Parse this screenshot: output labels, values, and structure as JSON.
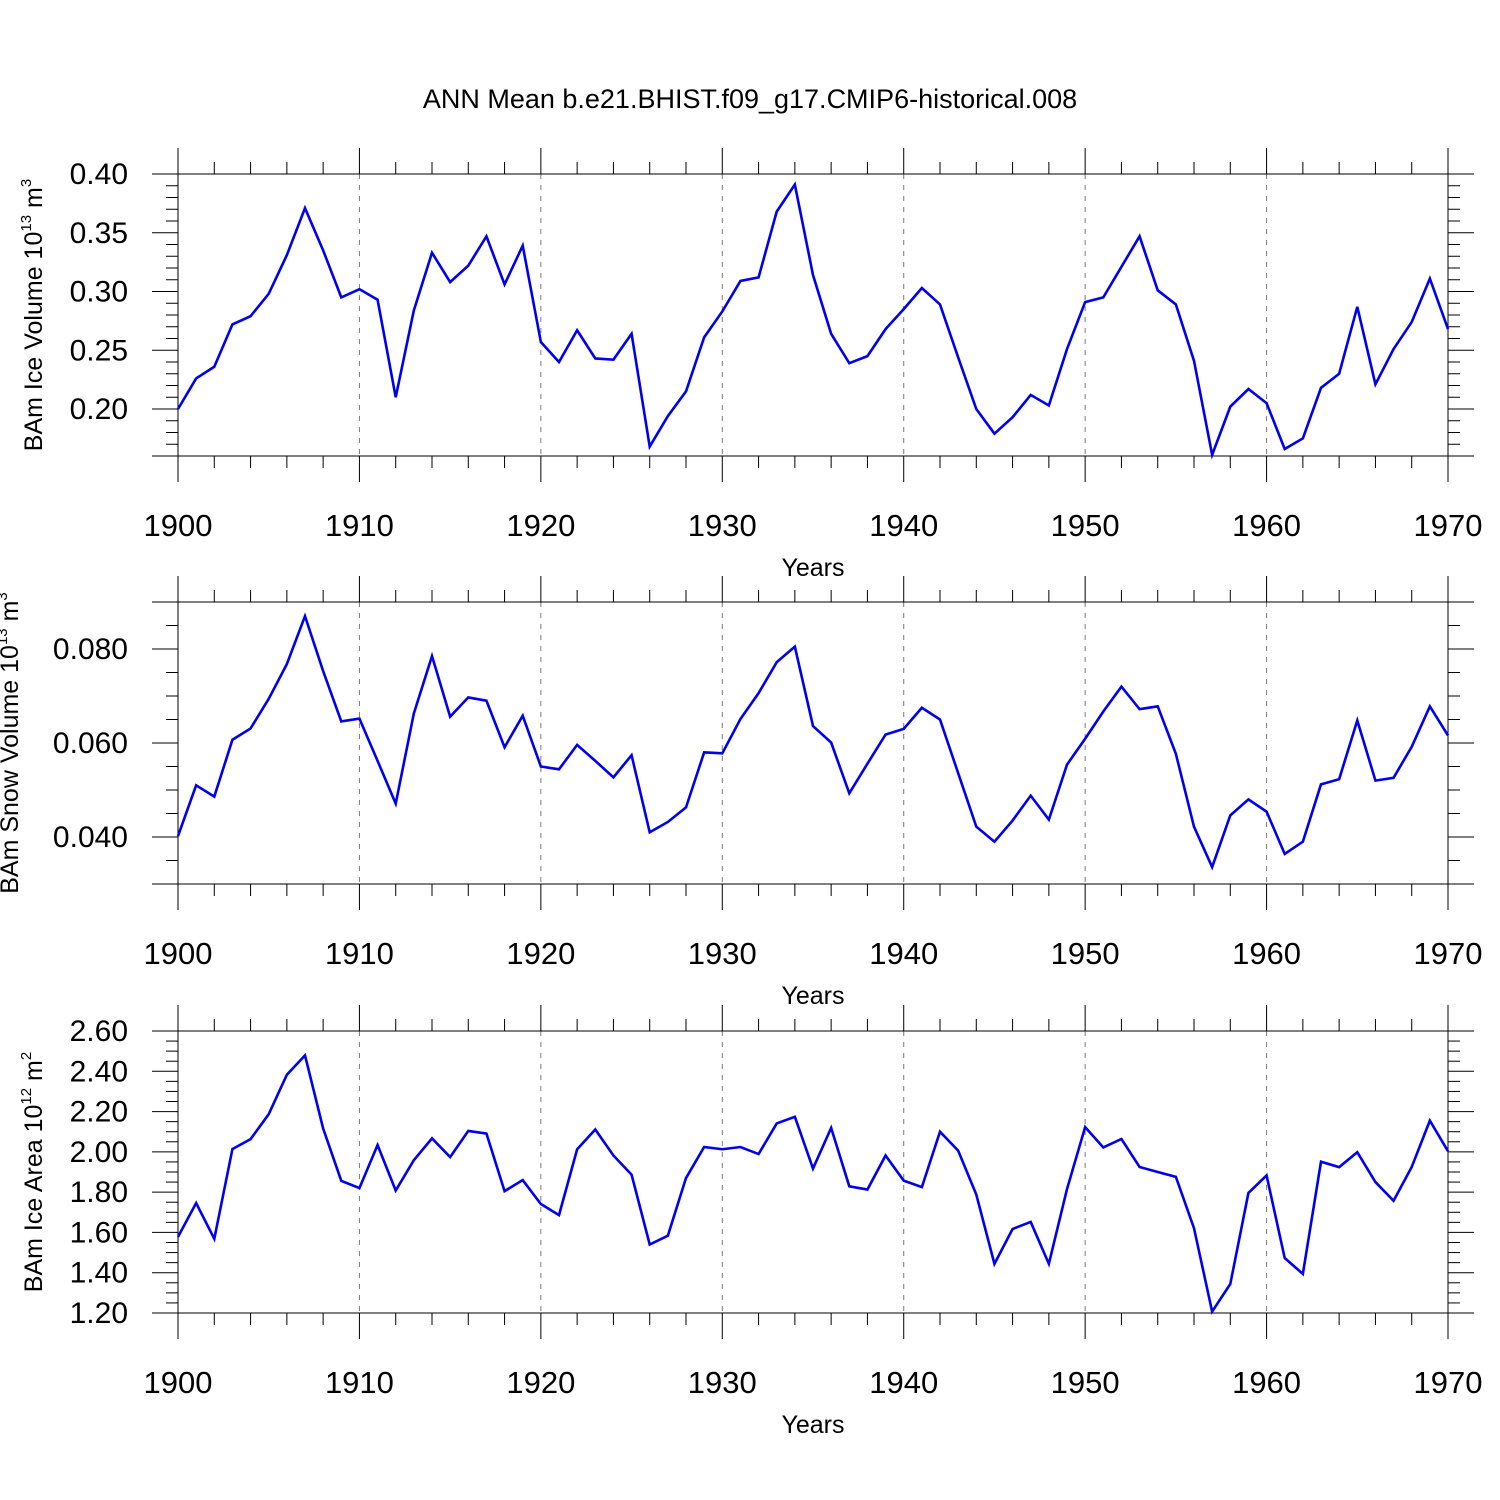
{
  "figure": {
    "title": "ANN Mean b.e21.BHIST.f09_g17.CMIP6-historical.008"
  },
  "chart_data": [
    {
      "type": "line",
      "ylabel_main": "BAm Ice Volume 10",
      "ylabel_exp": "13",
      "ylabel_unit": "m",
      "ylabel_unit_exp": "3",
      "xlabel": "Years",
      "xlim": [
        1900,
        1970
      ],
      "ylim": [
        0.16,
        0.4
      ],
      "x_ticks": [
        1900,
        1910,
        1920,
        1930,
        1940,
        1950,
        1960,
        1970
      ],
      "x_tick_labels": [
        "1900",
        "1910",
        "1920",
        "1930",
        "1940",
        "1950",
        "1960",
        "1970"
      ],
      "y_ticks": [
        0.2,
        0.25,
        0.3,
        0.35,
        0.4
      ],
      "y_tick_labels": [
        "0.20",
        "0.25",
        "0.30",
        "0.35",
        "0.40"
      ],
      "y_minor_step": 0.01,
      "grid": "vertical dashed at major x ticks",
      "line_color": "#0000ee",
      "x": [
        1900,
        1901,
        1902,
        1903,
        1904,
        1905,
        1906,
        1907,
        1908,
        1909,
        1910,
        1911,
        1912,
        1913,
        1914,
        1915,
        1916,
        1917,
        1918,
        1919,
        1920,
        1921,
        1922,
        1923,
        1924,
        1925,
        1926,
        1927,
        1928,
        1929,
        1930,
        1931,
        1932,
        1933,
        1934,
        1935,
        1936,
        1937,
        1938,
        1939,
        1940,
        1941,
        1942,
        1943,
        1944,
        1945,
        1946,
        1947,
        1948,
        1949,
        1950,
        1951,
        1952,
        1953,
        1954,
        1955,
        1956,
        1957,
        1958,
        1959,
        1960,
        1961,
        1962,
        1963,
        1964,
        1965,
        1966,
        1967,
        1968,
        1969,
        1970
      ],
      "values": [
        0.2,
        0.226,
        0.236,
        0.272,
        0.279,
        0.298,
        0.331,
        0.371,
        0.335,
        0.295,
        0.302,
        0.293,
        0.21,
        0.284,
        0.333,
        0.308,
        0.322,
        0.347,
        0.306,
        0.339,
        0.257,
        0.24,
        0.267,
        0.243,
        0.242,
        0.264,
        0.168,
        0.194,
        0.215,
        0.261,
        0.283,
        0.309,
        0.312,
        0.368,
        0.391,
        0.314,
        0.264,
        0.239,
        0.245,
        0.268,
        0.285,
        0.303,
        0.289,
        0.244,
        0.2,
        0.179,
        0.193,
        0.212,
        0.203,
        0.251,
        0.291,
        0.295,
        0.321,
        0.347,
        0.301,
        0.289,
        0.241,
        0.161,
        0.202,
        0.217,
        0.205,
        0.166,
        0.175,
        0.218,
        0.23,
        0.287,
        0.221,
        0.251,
        0.274,
        0.311,
        0.268
      ]
    },
    {
      "type": "line",
      "ylabel_main": "BAm Snow Volume 10",
      "ylabel_exp": "13",
      "ylabel_unit": "m",
      "ylabel_unit_exp": "3",
      "xlabel": "Years",
      "xlim": [
        1900,
        1970
      ],
      "ylim": [
        0.03,
        0.09
      ],
      "x_ticks": [
        1900,
        1910,
        1920,
        1930,
        1940,
        1950,
        1960,
        1970
      ],
      "x_tick_labels": [
        "1900",
        "1910",
        "1920",
        "1930",
        "1940",
        "1950",
        "1960",
        "1970"
      ],
      "y_ticks": [
        0.04,
        0.06,
        0.08
      ],
      "y_tick_labels": [
        "0.040",
        "0.060",
        "0.080"
      ],
      "y_minor_step": 0.005,
      "grid": "vertical dashed at major x ticks",
      "line_color": "#0000ee",
      "x": [
        1900,
        1901,
        1902,
        1903,
        1904,
        1905,
        1906,
        1907,
        1908,
        1909,
        1910,
        1911,
        1912,
        1913,
        1914,
        1915,
        1916,
        1917,
        1918,
        1919,
        1920,
        1921,
        1922,
        1923,
        1924,
        1925,
        1926,
        1927,
        1928,
        1929,
        1930,
        1931,
        1932,
        1933,
        1934,
        1935,
        1936,
        1937,
        1938,
        1939,
        1940,
        1941,
        1942,
        1943,
        1944,
        1945,
        1946,
        1947,
        1948,
        1949,
        1950,
        1951,
        1952,
        1953,
        1954,
        1955,
        1956,
        1957,
        1958,
        1959,
        1960,
        1961,
        1962,
        1963,
        1964,
        1965,
        1966,
        1967,
        1968,
        1969,
        1970
      ],
      "values": [
        0.0402,
        0.051,
        0.0486,
        0.0607,
        0.0631,
        0.0694,
        0.0768,
        0.087,
        0.0753,
        0.0646,
        0.0652,
        0.0562,
        0.0471,
        0.0663,
        0.0785,
        0.0656,
        0.0697,
        0.069,
        0.0591,
        0.0658,
        0.055,
        0.0544,
        0.0596,
        0.0562,
        0.0527,
        0.0574,
        0.041,
        0.0432,
        0.0463,
        0.058,
        0.0578,
        0.0651,
        0.0706,
        0.0772,
        0.0805,
        0.0636,
        0.0601,
        0.0493,
        0.0556,
        0.0618,
        0.063,
        0.0675,
        0.065,
        0.0536,
        0.0422,
        0.039,
        0.0435,
        0.0488,
        0.0437,
        0.0554,
        0.0609,
        0.0667,
        0.072,
        0.0672,
        0.0678,
        0.0577,
        0.0422,
        0.0336,
        0.0446,
        0.048,
        0.0454,
        0.0364,
        0.039,
        0.0512,
        0.0523,
        0.0648,
        0.052,
        0.0526,
        0.0592,
        0.0678,
        0.0616
      ]
    },
    {
      "type": "line",
      "ylabel_main": "BAm Ice Area 10",
      "ylabel_exp": "12",
      "ylabel_unit": "m",
      "ylabel_unit_exp": "2",
      "xlabel": "Years",
      "xlim": [
        1900,
        1970
      ],
      "ylim": [
        1.2,
        2.6
      ],
      "x_ticks": [
        1900,
        1910,
        1920,
        1930,
        1940,
        1950,
        1960,
        1970
      ],
      "x_tick_labels": [
        "1900",
        "1910",
        "1920",
        "1930",
        "1940",
        "1950",
        "1960",
        "1970"
      ],
      "y_ticks": [
        1.2,
        1.4,
        1.6,
        1.8,
        2.0,
        2.2,
        2.4,
        2.6
      ],
      "y_tick_labels": [
        "1.20",
        "1.40",
        "1.60",
        "1.80",
        "2.00",
        "2.20",
        "2.40",
        "2.60"
      ],
      "y_minor_step": 0.05,
      "grid": "vertical dashed at major x ticks",
      "line_color": "#0000ee",
      "x": [
        1900,
        1901,
        1902,
        1903,
        1904,
        1905,
        1906,
        1907,
        1908,
        1909,
        1910,
        1911,
        1912,
        1913,
        1914,
        1915,
        1916,
        1917,
        1918,
        1919,
        1920,
        1921,
        1922,
        1923,
        1924,
        1925,
        1926,
        1927,
        1928,
        1929,
        1930,
        1931,
        1932,
        1933,
        1934,
        1935,
        1936,
        1937,
        1938,
        1939,
        1940,
        1941,
        1942,
        1943,
        1944,
        1945,
        1946,
        1947,
        1948,
        1949,
        1950,
        1951,
        1952,
        1953,
        1954,
        1955,
        1956,
        1957,
        1958,
        1959,
        1960,
        1961,
        1962,
        1963,
        1964,
        1965,
        1966,
        1967,
        1968,
        1969,
        1970
      ],
      "values": [
        1.578,
        1.746,
        1.568,
        2.014,
        2.063,
        2.187,
        2.383,
        2.479,
        2.116,
        1.856,
        1.82,
        2.034,
        1.808,
        1.959,
        2.067,
        1.974,
        2.104,
        2.091,
        1.805,
        1.86,
        1.741,
        1.686,
        2.013,
        2.111,
        1.982,
        1.887,
        1.54,
        1.584,
        1.87,
        2.024,
        2.013,
        2.024,
        1.989,
        2.141,
        2.174,
        1.917,
        2.119,
        1.829,
        1.813,
        1.982,
        1.857,
        1.825,
        2.1,
        2.006,
        1.788,
        1.444,
        1.617,
        1.652,
        1.444,
        1.815,
        2.123,
        2.022,
        2.064,
        1.925,
        1.9,
        1.876,
        1.621,
        1.207,
        1.344,
        1.796,
        1.883,
        1.473,
        1.394,
        1.951,
        1.924,
        1.998,
        1.85,
        1.757,
        1.925,
        2.155,
        2.003
      ]
    }
  ]
}
